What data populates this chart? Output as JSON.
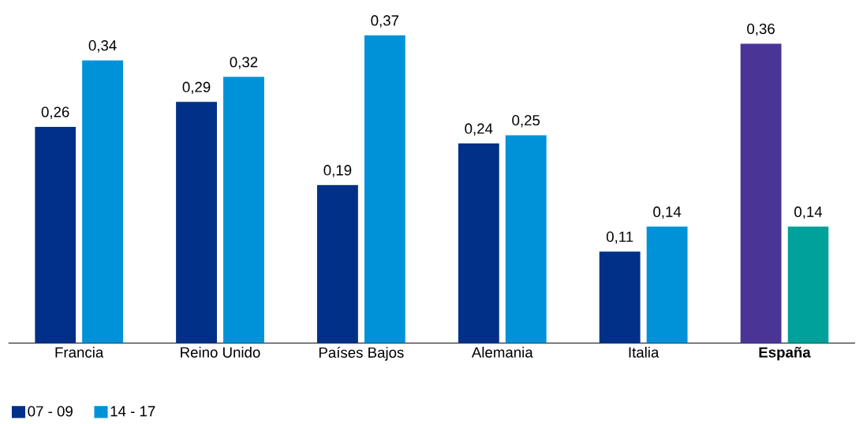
{
  "chart_data": {
    "type": "bar",
    "categories": [
      "Francia",
      "Reino Unido",
      "Países Bajos",
      "Alemania",
      "Italia",
      "**España**"
    ],
    "series": [
      {
        "name": "07 - 09",
        "color": "#003087",
        "colors": [
          "#003087",
          "#003087",
          "#003087",
          "#003087",
          "#003087",
          "#4a3597"
        ],
        "values": [
          0.26,
          0.29,
          0.19,
          0.24,
          0.11,
          0.36
        ],
        "value_labels": [
          "0,26",
          "0,29",
          "0,19",
          "0,24",
          "0,11",
          "0,36"
        ]
      },
      {
        "name": "14 - 17",
        "color": "#0092d9",
        "colors": [
          "#0092d9",
          "#0092d9",
          "#0092d9",
          "#0092d9",
          "#0092d9",
          "#00a19a"
        ],
        "values": [
          0.34,
          0.32,
          0.37,
          0.25,
          0.14,
          0.14
        ],
        "value_labels": [
          "0,34",
          "0,32",
          "0,37",
          "0,25",
          "0,14",
          "0,14"
        ]
      }
    ],
    "legend": "bottom left"
  }
}
